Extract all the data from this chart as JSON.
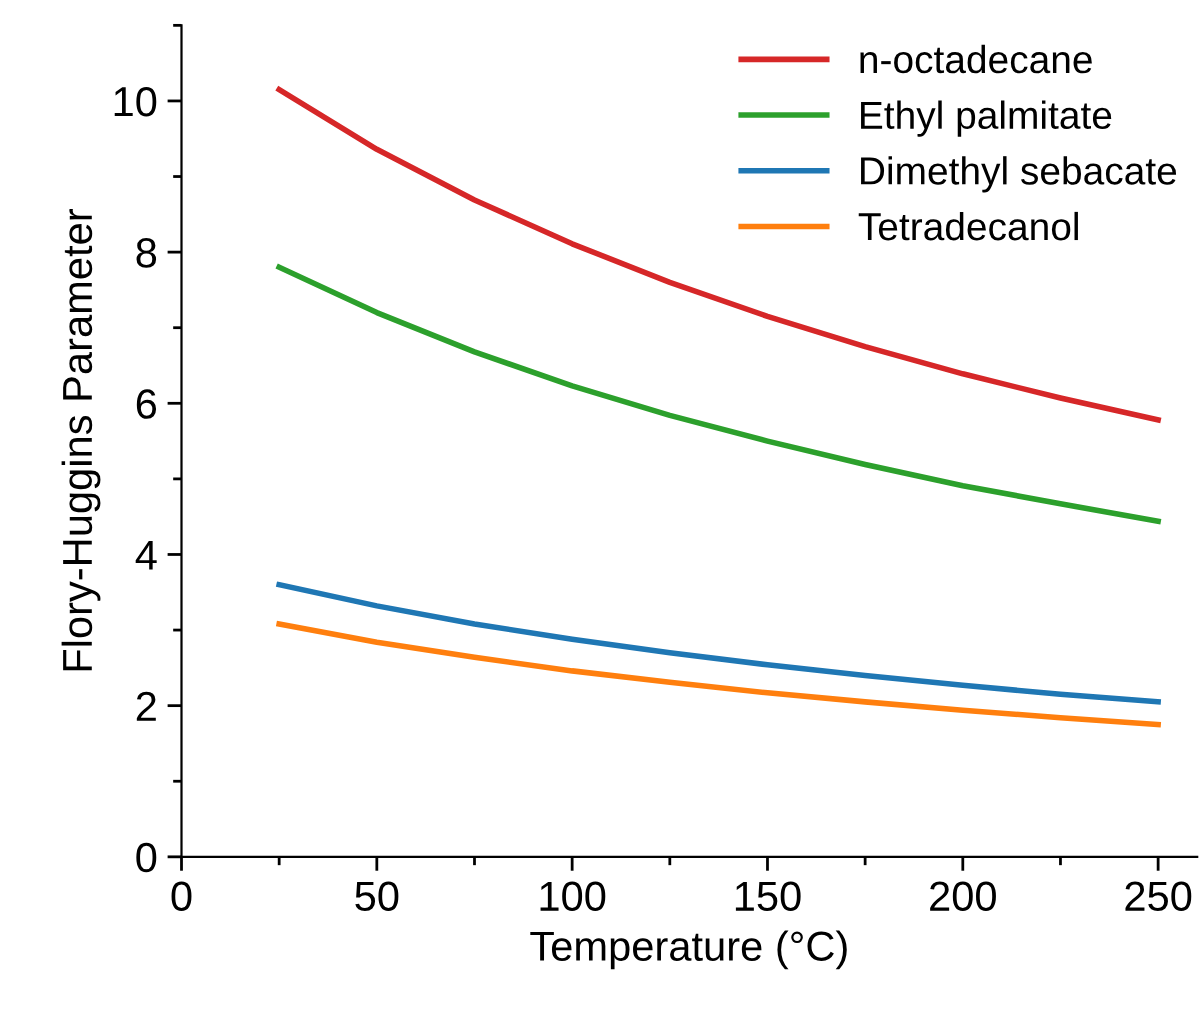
{
  "chart_data": {
    "type": "line",
    "xlabel": "Temperature (°C)",
    "ylabel": "Flory-Huggins Parameter",
    "x": [
      25,
      50,
      75,
      100,
      125,
      150,
      175,
      200,
      225,
      250
    ],
    "series": [
      {
        "name": "n-octadecane",
        "color": "#d62728",
        "values": [
          10.15,
          9.36,
          8.69,
          8.11,
          7.6,
          7.15,
          6.75,
          6.39,
          6.07,
          5.78
        ]
      },
      {
        "name": "Ethyl palmitate",
        "color": "#2ca02c",
        "values": [
          7.8,
          7.2,
          6.68,
          6.23,
          5.84,
          5.5,
          5.19,
          4.91,
          4.67,
          4.44
        ]
      },
      {
        "name": "Dimethyl sebacate",
        "color": "#1f77b4",
        "values": [
          3.6,
          3.32,
          3.08,
          2.88,
          2.7,
          2.54,
          2.4,
          2.27,
          2.15,
          2.05
        ]
      },
      {
        "name": "Tetradecanol",
        "color": "#ff7f0e",
        "values": [
          3.08,
          2.84,
          2.64,
          2.46,
          2.31,
          2.17,
          2.05,
          1.94,
          1.84,
          1.75
        ]
      }
    ],
    "xlim": [
      0,
      260
    ],
    "xticks": [
      0,
      50,
      100,
      150,
      200,
      250
    ],
    "ylim": [
      0,
      11
    ],
    "yticks": [
      0,
      2,
      4,
      6,
      8,
      10
    ],
    "grid": false,
    "legend": "top right",
    "marker": "none",
    "line_style": "solid"
  }
}
